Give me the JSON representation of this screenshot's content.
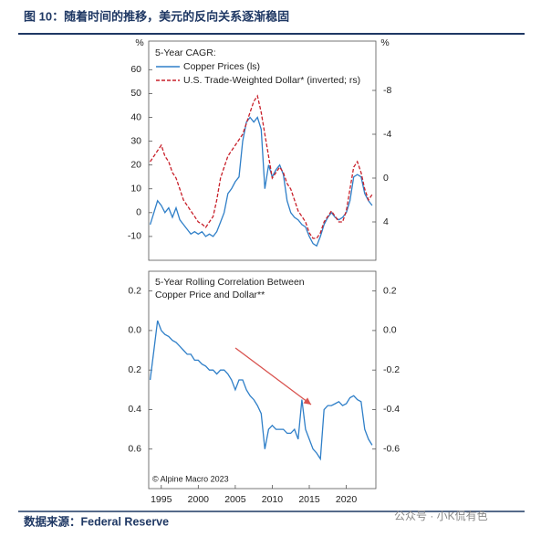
{
  "title": "图 10：随着时间的推移，美元的反向关系逐渐稳固",
  "source": "数据来源：Federal Reserve",
  "watermark": "公众号 · 小K侃有色",
  "chart_data": [
    {
      "type": "line",
      "title": "5-Year CAGR:",
      "y_unit": "%",
      "y2_unit": "%",
      "x": [
        1993.5,
        1994,
        1994.5,
        1995,
        1995.5,
        1996,
        1996.5,
        1997,
        1997.5,
        1998,
        1998.5,
        1999,
        1999.5,
        2000,
        2000.5,
        2001,
        2001.5,
        2002,
        2002.5,
        2003,
        2003.5,
        2004,
        2004.5,
        2005,
        2005.5,
        2006,
        2006.5,
        2007,
        2007.5,
        2008,
        2008.5,
        2009,
        2009.5,
        2010,
        2010.5,
        2011,
        2011.5,
        2012,
        2012.5,
        2013,
        2013.5,
        2014,
        2014.5,
        2015,
        2015.5,
        2016,
        2016.5,
        2017,
        2017.5,
        2018,
        2018.5,
        2019,
        2019.5,
        2020,
        2020.5,
        2021,
        2021.5,
        2022,
        2022.5,
        2023,
        2023.5
      ],
      "xlim": [
        1993.3,
        2024
      ],
      "ylim": [
        -20,
        72
      ],
      "yticks": [
        -10,
        0,
        10,
        20,
        30,
        40,
        50,
        60
      ],
      "y2lim": [
        7.5,
        -12.5
      ],
      "y2ticks": [
        4,
        0,
        -4,
        -8
      ],
      "series": [
        {
          "name": "Copper Prices (ls)",
          "color": "#2f7fc8",
          "style": "solid",
          "values": [
            -5,
            0,
            5,
            3,
            0,
            2,
            -2,
            2,
            -3,
            -5,
            -7,
            -9,
            -8,
            -9,
            -8,
            -10,
            -9,
            -10,
            -8,
            -4,
            0,
            8,
            10,
            13,
            15,
            30,
            38,
            40,
            38,
            40,
            35,
            10,
            20,
            15,
            18,
            20,
            16,
            5,
            0,
            -2,
            -3,
            -5,
            -6,
            -10,
            -13,
            -14,
            -10,
            -5,
            -2,
            0,
            -2,
            -3,
            -2,
            0,
            5,
            15,
            16,
            15,
            8,
            5,
            3
          ]
        },
        {
          "name": "U.S. Trade-Weighted Dollar* (inverted; rs)",
          "color": "#c8202a",
          "style": "dashed",
          "axis": "y2",
          "values": [
            -1.5,
            -2,
            -2.5,
            -3,
            -2,
            -1.5,
            -0.5,
            0,
            1,
            2,
            2.5,
            3,
            3.5,
            4,
            4.2,
            4.5,
            4,
            3.5,
            2,
            0,
            -1,
            -2,
            -2.5,
            -3,
            -3.5,
            -4,
            -5,
            -6,
            -7,
            -7.5,
            -6,
            -4,
            -2,
            0,
            -0.5,
            -1,
            -0.5,
            0.5,
            1,
            2,
            3,
            3.5,
            4,
            5,
            5.5,
            5.5,
            5,
            4,
            3.5,
            3,
            3.5,
            4,
            4,
            3,
            1,
            -1,
            -1.5,
            -0.5,
            1,
            2,
            1.5
          ]
        }
      ]
    },
    {
      "type": "line",
      "title": [
        "5-Year Rolling Correlation Between",
        "Copper Price and Dollar**"
      ],
      "annotation": "© Alpine Macro 2023",
      "x": [
        1993.5,
        1994,
        1994.5,
        1995,
        1995.5,
        1996,
        1996.5,
        1997,
        1997.5,
        1998,
        1998.5,
        1999,
        1999.5,
        2000,
        2000.5,
        2001,
        2001.5,
        2002,
        2002.5,
        2003,
        2003.5,
        2004,
        2004.5,
        2005,
        2005.5,
        2006,
        2006.5,
        2007,
        2007.5,
        2008,
        2008.5,
        2009,
        2009.5,
        2010,
        2010.5,
        2011,
        2011.5,
        2012,
        2012.5,
        2013,
        2013.5,
        2014,
        2014.5,
        2015,
        2015.5,
        2016,
        2016.5,
        2017,
        2017.5,
        2018,
        2018.5,
        2019,
        2019.5,
        2020,
        2020.5,
        2021,
        2021.5,
        2022,
        2022.5,
        2023,
        2023.5
      ],
      "xlim": [
        1993.3,
        2024
      ],
      "xticks": [
        1995,
        2000,
        2005,
        2010,
        2015,
        2020
      ],
      "ylim": [
        -0.8,
        0.3
      ],
      "yticks": [
        0.2,
        {
          "value": 0,
          "label": "0.0"
        },
        {
          "value": -0.2,
          "label": "0.2"
        },
        {
          "value": -0.4,
          "label": "0.4"
        },
        {
          "value": -0.6,
          "label": "0.6"
        }
      ],
      "y2lim": [
        -0.8,
        0.3
      ],
      "y2ticks": [
        0.2,
        {
          "value": 0,
          "label": "0.0"
        },
        -0.2,
        -0.4,
        -0.6
      ],
      "series": [
        {
          "color": "#2f7fc8",
          "values": [
            -0.25,
            -0.1,
            0.05,
            0,
            -0.02,
            -0.03,
            -0.05,
            -0.06,
            -0.08,
            -0.1,
            -0.12,
            -0.12,
            -0.15,
            -0.15,
            -0.17,
            -0.18,
            -0.2,
            -0.2,
            -0.22,
            -0.2,
            -0.2,
            -0.22,
            -0.25,
            -0.3,
            -0.25,
            -0.25,
            -0.3,
            -0.33,
            -0.35,
            -0.38,
            -0.42,
            -0.6,
            -0.5,
            -0.48,
            -0.5,
            -0.5,
            -0.5,
            -0.52,
            -0.52,
            -0.5,
            -0.55,
            -0.35,
            -0.5,
            -0.55,
            -0.6,
            -0.62,
            -0.65,
            -0.4,
            -0.38,
            -0.38,
            -0.37,
            -0.36,
            -0.38,
            -0.37,
            -0.34,
            -0.33,
            -0.35,
            -0.36,
            -0.5,
            -0.55,
            -0.58
          ]
        }
      ]
    }
  ]
}
